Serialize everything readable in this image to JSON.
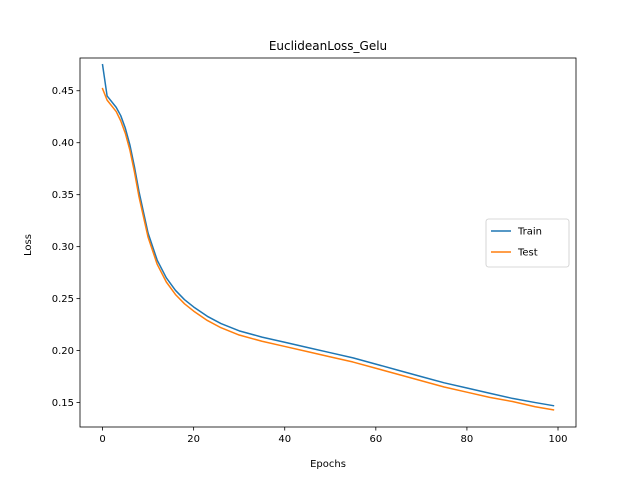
{
  "chart_data": {
    "type": "line",
    "title": "EuclideanLoss_Gelu",
    "xlabel": "Epochs",
    "ylabel": "Loss",
    "xlim": [
      -4.95,
      103.95
    ],
    "ylim": [
      0.1265,
      0.4815
    ],
    "xticks": [
      0,
      20,
      40,
      60,
      80,
      100
    ],
    "xtick_labels": [
      "0",
      "20",
      "40",
      "60",
      "80",
      "100"
    ],
    "yticks": [
      0.15,
      0.2,
      0.25,
      0.3,
      0.35,
      0.4,
      0.45
    ],
    "ytick_labels": [
      "0.15",
      "0.20",
      "0.25",
      "0.30",
      "0.35",
      "0.40",
      "0.45"
    ],
    "grid": false,
    "legend_position": "center-right",
    "series": [
      {
        "name": "Train",
        "color": "#1f77b4",
        "x": [
          0,
          1,
          3,
          4,
          5,
          6,
          7,
          8,
          10,
          12,
          14,
          16,
          18,
          20,
          23,
          26,
          30,
          35,
          40,
          45,
          50,
          55,
          60,
          65,
          70,
          75,
          80,
          85,
          90,
          95,
          99
        ],
        "y": [
          0.475,
          0.445,
          0.434,
          0.426,
          0.414,
          0.398,
          0.377,
          0.353,
          0.313,
          0.287,
          0.27,
          0.258,
          0.249,
          0.242,
          0.233,
          0.226,
          0.219,
          0.213,
          0.208,
          0.203,
          0.198,
          0.193,
          0.187,
          0.181,
          0.175,
          0.169,
          0.164,
          0.159,
          0.154,
          0.15,
          0.147
        ]
      },
      {
        "name": "Test",
        "color": "#ff7f0e",
        "x": [
          0,
          1,
          3,
          4,
          5,
          6,
          7,
          8,
          10,
          12,
          14,
          16,
          18,
          20,
          23,
          26,
          30,
          35,
          40,
          45,
          50,
          55,
          60,
          65,
          70,
          75,
          80,
          85,
          90,
          95,
          99
        ],
        "y": [
          0.452,
          0.441,
          0.43,
          0.421,
          0.409,
          0.393,
          0.372,
          0.348,
          0.309,
          0.283,
          0.266,
          0.254,
          0.245,
          0.238,
          0.229,
          0.222,
          0.215,
          0.209,
          0.204,
          0.199,
          0.194,
          0.189,
          0.183,
          0.177,
          0.171,
          0.165,
          0.16,
          0.155,
          0.151,
          0.146,
          0.143
        ]
      }
    ]
  }
}
